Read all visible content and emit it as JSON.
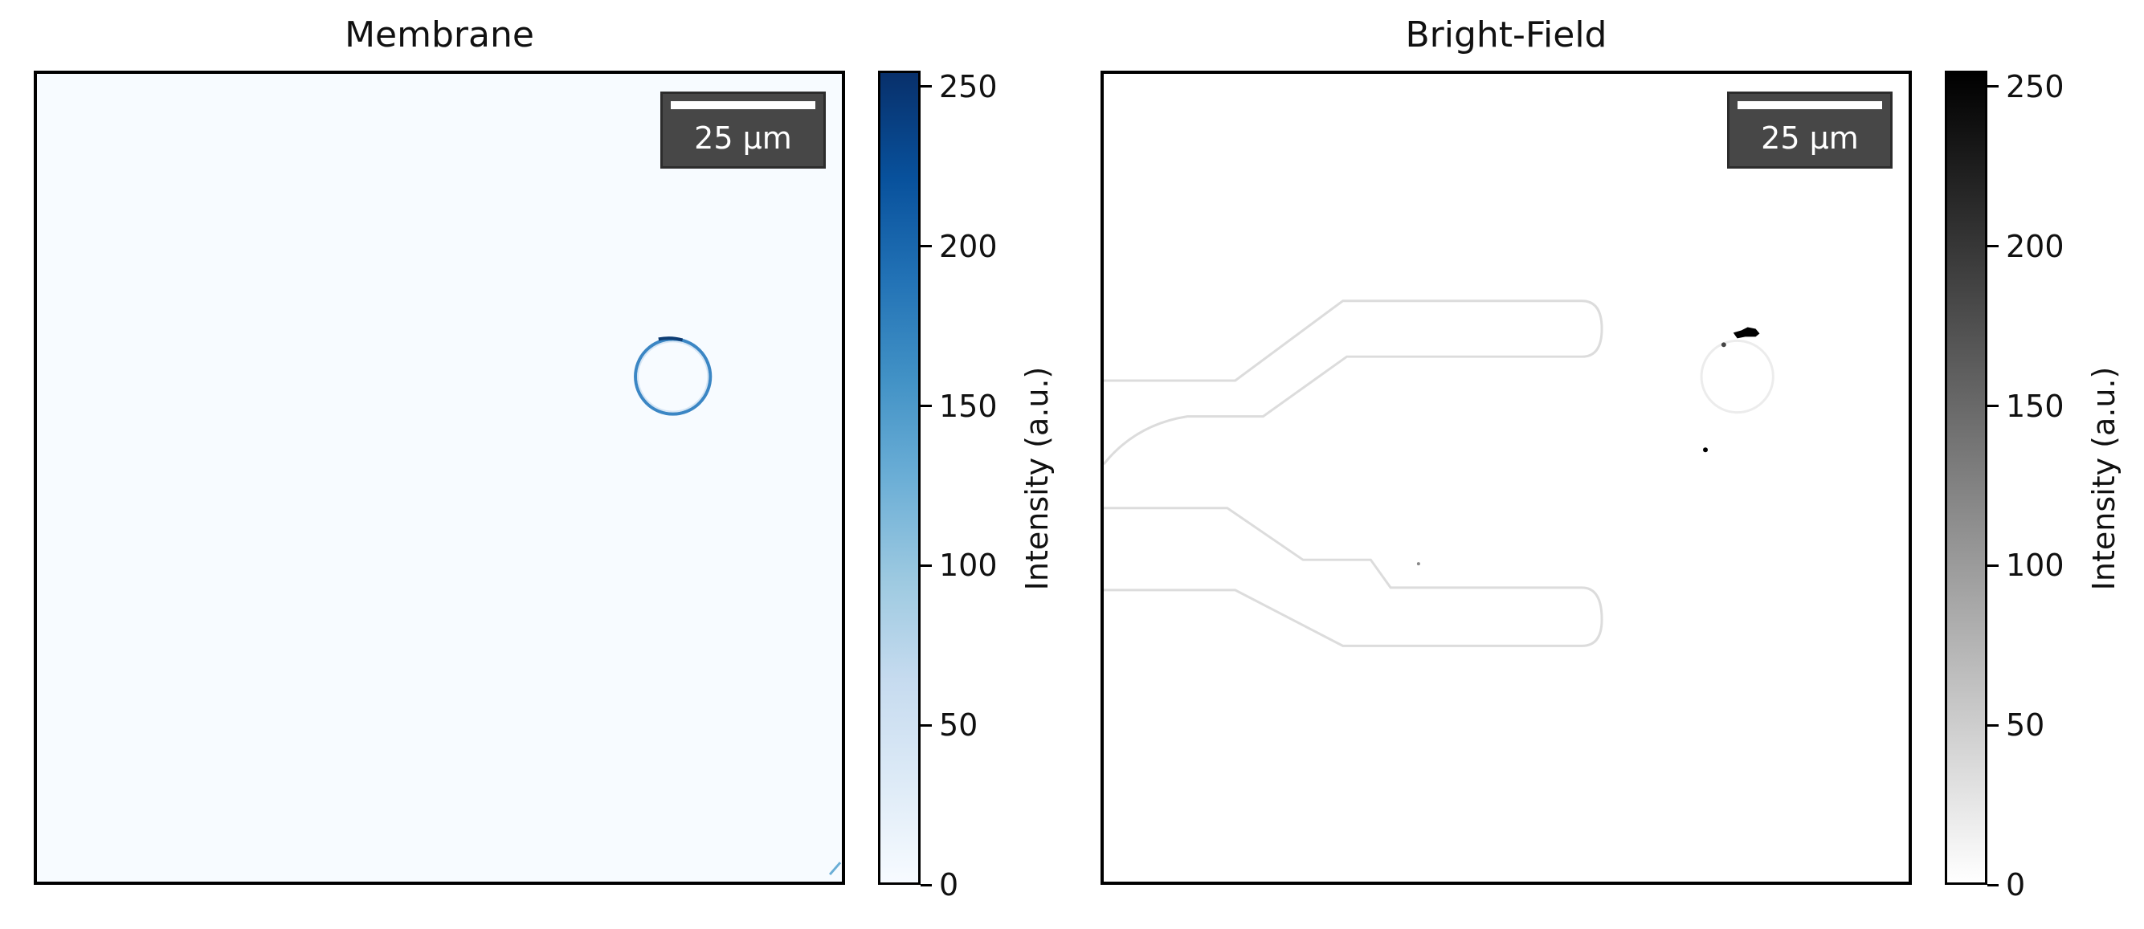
{
  "panels": [
    {
      "title": "Membrane",
      "scale_bar_label": "25 µm",
      "colorbar": {
        "label": "Intensity (a.u.)",
        "ticks": [
          "0",
          "50",
          "100",
          "150",
          "200",
          "250"
        ],
        "range": [
          0,
          255
        ],
        "colormap": "Blues",
        "low_color": "#f7fbff",
        "high_color": "#08306b"
      }
    },
    {
      "title": "Bright-Field",
      "scale_bar_label": "25 µm",
      "colorbar": {
        "label": "Intensity (a.u.)",
        "ticks": [
          "0",
          "50",
          "100",
          "150",
          "200",
          "250"
        ],
        "range": [
          0,
          255
        ],
        "colormap": "Greys",
        "low_color": "#ffffff",
        "high_color": "#000000"
      }
    }
  ]
}
